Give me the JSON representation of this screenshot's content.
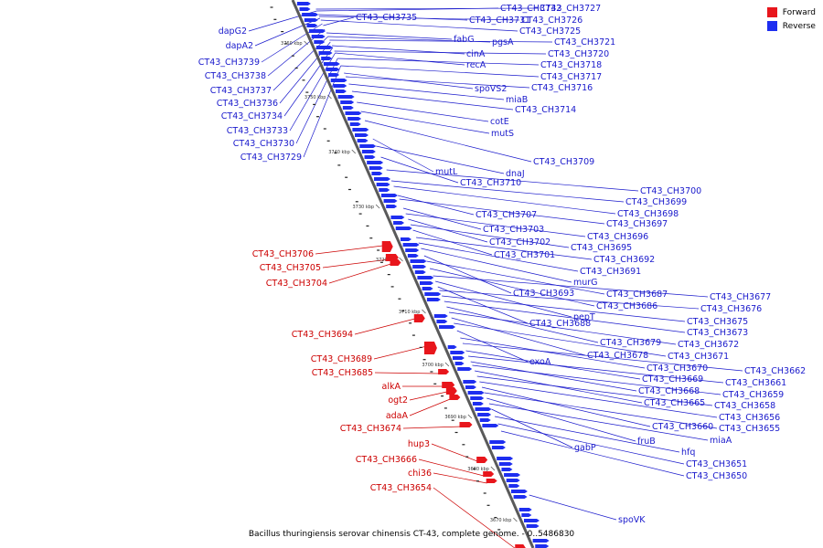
{
  "colors": {
    "forward": "#e8161c",
    "reverse": "#1e2ef0",
    "label_forward": "#cc0000",
    "label_reverse": "#1a1acc",
    "backbone": "#5a5a5a"
  },
  "legend": {
    "forward": "Forward",
    "reverse": "Reverse"
  },
  "caption": "Bacillus thuringiensis serovar chinensis CT-43, complete genome. - 0..5486830",
  "ticks": [
    "3760 kbp",
    "3750 kbp",
    "3740 kbp",
    "3730 kbp",
    "3720 kbp",
    "3710 kbp",
    "3700 kbp",
    "3690 kbp",
    "3680 kbp",
    "3670 kbp"
  ],
  "reverse_labels": [
    "dapG2",
    "dapA2",
    "CT43_CH3739",
    "CT43_CH3738",
    "CT43_CH3737",
    "CT43_CH3736",
    "CT43_CH3734",
    "CT43_CH3733",
    "CT43_CH3730",
    "CT43_CH3729",
    "CT43_CH3735",
    "CT43_CH3732",
    "CT43_CH3727",
    "CT43_CH3731",
    "CT43_CH3726",
    "CT43_CH3725",
    "fabG",
    "pgsA",
    "CT43_CH3721",
    "cinA",
    "CT43_CH3720",
    "recA",
    "CT43_CH3718",
    "CT43_CH3717",
    "spoVS2",
    "CT43_CH3716",
    "miaB",
    "CT43_CH3714",
    "cotE",
    "mutS",
    "CT43_CH3709",
    "mutL",
    "dnaJ",
    "CT43_CH3710",
    "CT43_CH3700",
    "CT43_CH3699",
    "CT43_CH3698",
    "CT43_CH3707",
    "CT43_CH3697",
    "CT43_CH3703",
    "CT43_CH3696",
    "CT43_CH3702",
    "CT43_CH3695",
    "CT43_CH3701",
    "CT43_CH3692",
    "CT43_CH3691",
    "murG",
    "CT43_CH3693",
    "CT43_CH3687",
    "CT43_CH3686",
    "CT43_CH3677",
    "pepT",
    "CT43_CH3688",
    "CT43_CH3676",
    "CT43_CH3675",
    "CT43_CH3673",
    "CT43_CH3679",
    "CT43_CH3672",
    "CT43_CH3678",
    "CT43_CH3671",
    "exoA",
    "CT43_CH3670",
    "CT43_CH3662",
    "CT43_CH3669",
    "CT43_CH3661",
    "CT43_CH3668",
    "CT43_CH3659",
    "CT43_CH3665",
    "CT43_CH3658",
    "CT43_CH3656",
    "CT43_CH3660",
    "CT43_CH3655",
    "fruB",
    "miaA",
    "gabP",
    "hfq",
    "CT43_CH3651",
    "CT43_CH3650",
    "spoVK"
  ],
  "forward_labels": [
    "CT43_CH3706",
    "CT43_CH3705",
    "CT43_CH3704",
    "CT43_CH3694",
    "CT43_CH3689",
    "CT43_CH3685",
    "alkA",
    "ogt2",
    "adaA",
    "CT43_CH3674",
    "hup3",
    "CT43_CH3666",
    "chi36",
    "CT43_CH3654"
  ]
}
